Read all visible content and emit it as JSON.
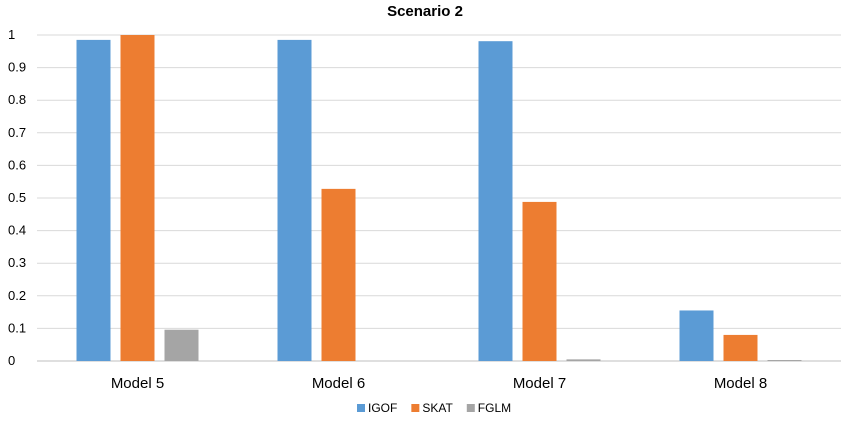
{
  "chart_data": {
    "type": "bar",
    "title": "Scenario 2",
    "xlabel": "",
    "ylabel": "",
    "categories": [
      "Model 5",
      "Model 6",
      "Model 7",
      "Model 8"
    ],
    "series": [
      {
        "name": "IGOF",
        "color": "#5b9bd5",
        "values": [
          0.985,
          0.985,
          0.981,
          0.155
        ]
      },
      {
        "name": "SKAT",
        "color": "#ed7d31",
        "values": [
          1.0,
          0.528,
          0.488,
          0.08
        ]
      },
      {
        "name": "FGLM",
        "color": "#a5a5a5",
        "values": [
          0.096,
          0.0,
          0.005,
          0.003
        ]
      }
    ],
    "ylim": [
      0,
      1
    ],
    "yticks": [
      "0",
      "0.1",
      "0.2",
      "0.3",
      "0.4",
      "0.5",
      "0.6",
      "0.7",
      "0.8",
      "0.9",
      "1"
    ],
    "grid": true,
    "legend_position": "bottom"
  }
}
